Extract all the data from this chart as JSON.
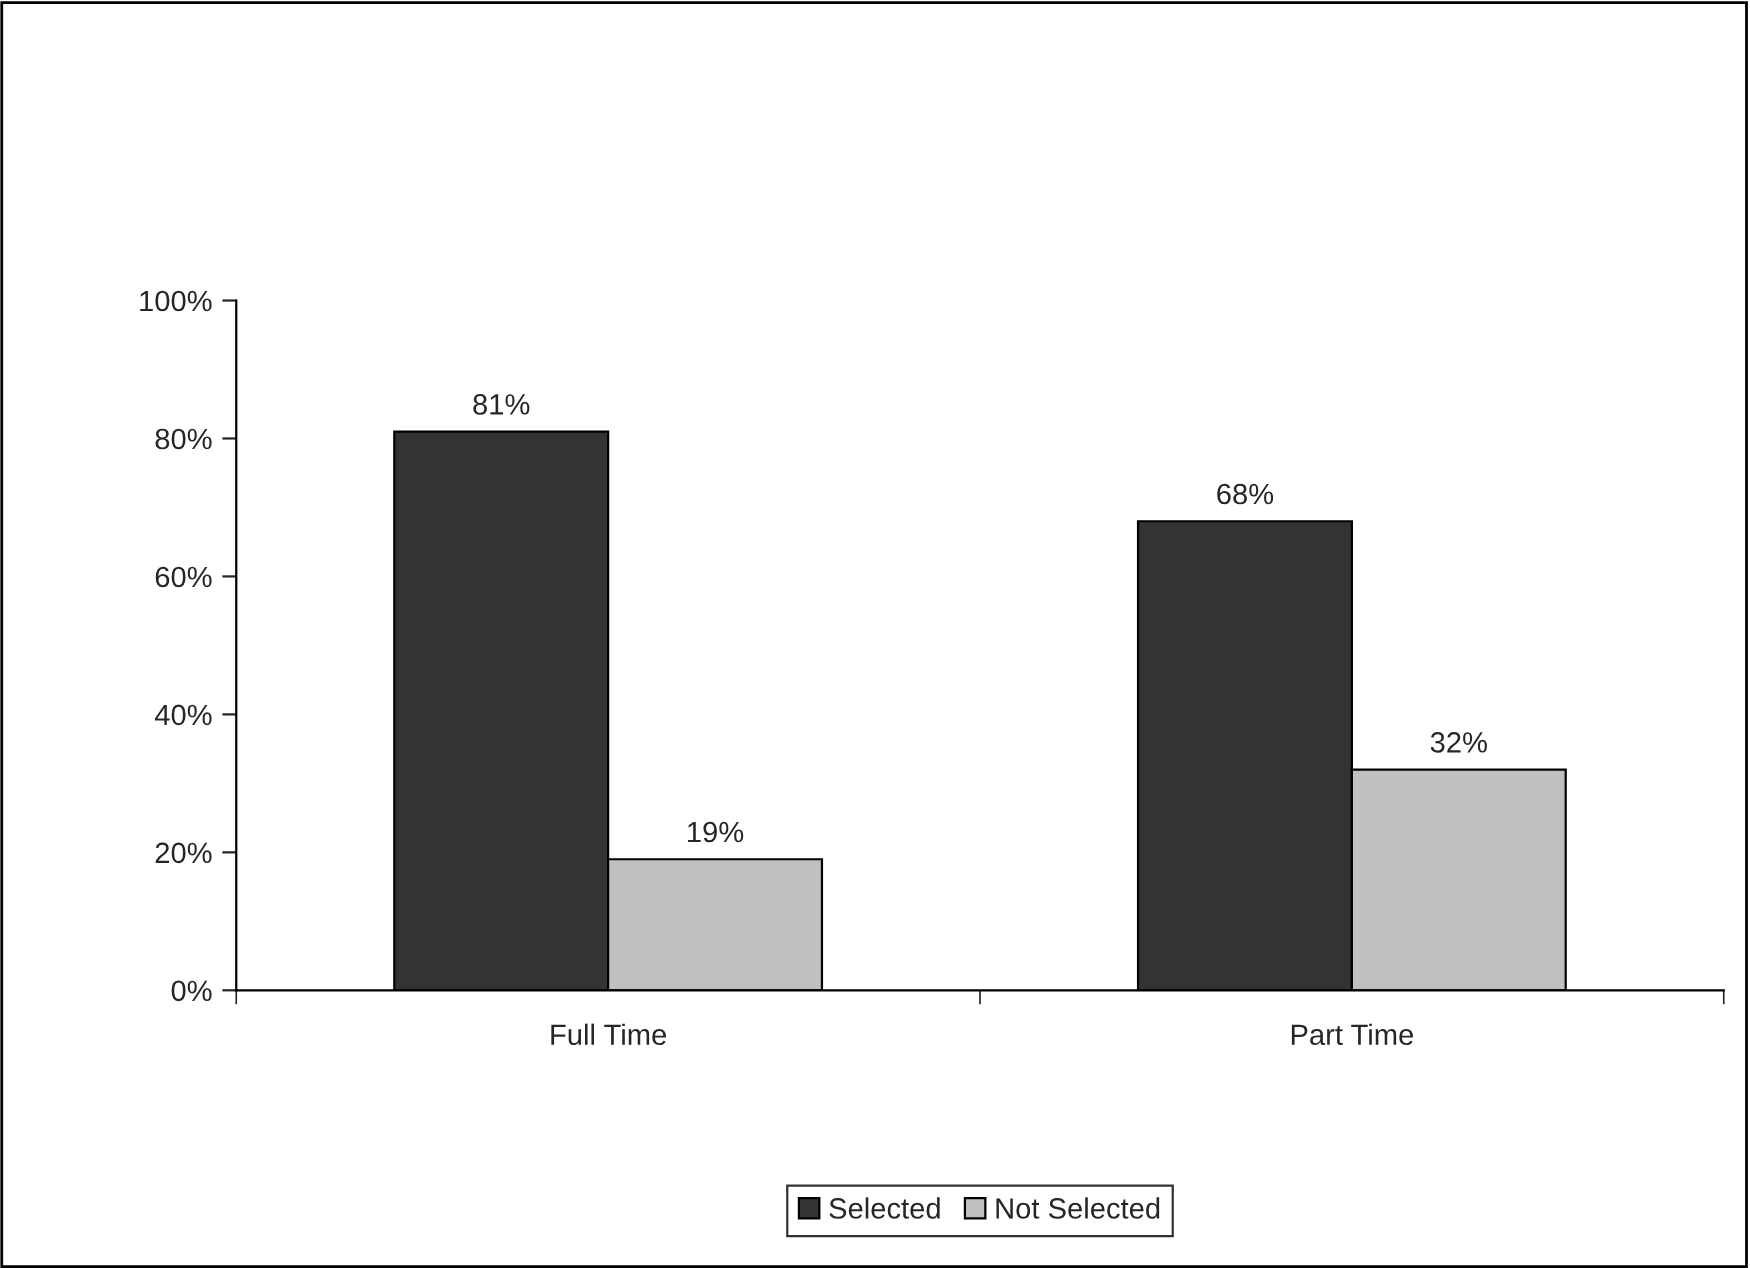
{
  "chart_data": {
    "type": "bar",
    "categories": [
      "Full Time",
      "Part Time"
    ],
    "series": [
      {
        "name": "Selected",
        "color": "#333333",
        "values": [
          81,
          68
        ],
        "value_labels": [
          "81%",
          "68%"
        ]
      },
      {
        "name": "Not Selected",
        "color": "#c0c0c0",
        "values": [
          19,
          32
        ],
        "value_labels": [
          "19%",
          "32%"
        ]
      }
    ],
    "ylim": [
      0,
      100
    ],
    "yticks": [
      {
        "value": 0,
        "label": "0%"
      },
      {
        "value": 20,
        "label": "20%"
      },
      {
        "value": 40,
        "label": "40%"
      },
      {
        "value": 60,
        "label": "60%"
      },
      {
        "value": 80,
        "label": "80%"
      },
      {
        "value": 100,
        "label": "100%"
      }
    ],
    "grid": false,
    "legend": "bottom"
  }
}
